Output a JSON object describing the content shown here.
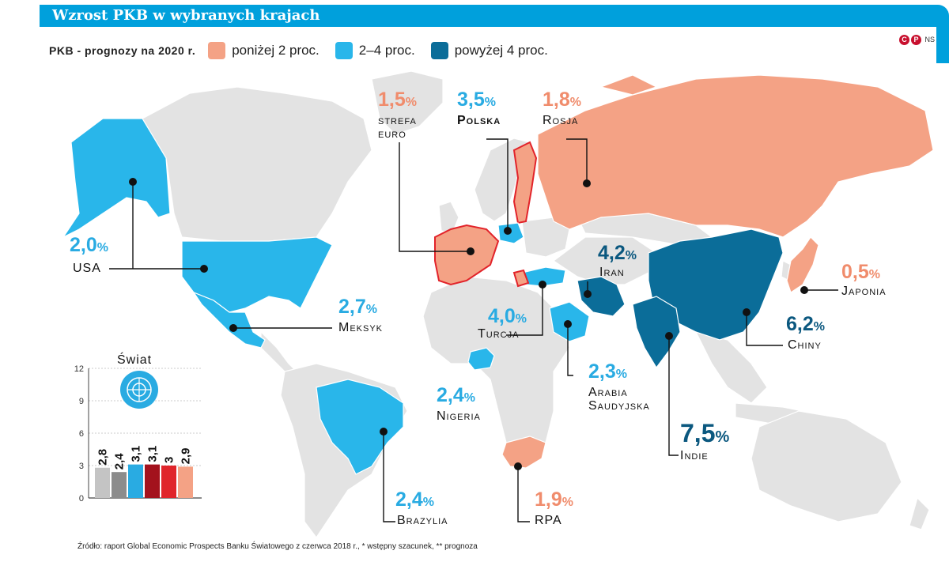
{
  "title": "Wzrost PKB w wybranych krajach",
  "legend": {
    "label": "PKB - prognozy na 2020 r.",
    "items": [
      {
        "label": "poniżej 2 proc.",
        "color": "#f4a285"
      },
      {
        "label": "2–4 proc.",
        "color": "#29b6ea"
      },
      {
        "label": "powyżej 4 proc.",
        "color": "#0b6d99"
      }
    ]
  },
  "copyright": {
    "symbols": [
      "C",
      "P"
    ],
    "author": "NS"
  },
  "countries": [
    {
      "key": "usa",
      "name": "USA",
      "value": "2,0",
      "category": "mid"
    },
    {
      "key": "meksyk",
      "name": "Meksyk",
      "value": "2,7",
      "category": "mid"
    },
    {
      "key": "strefa_euro",
      "name": "strefa euro",
      "value": "1,5",
      "category": "low"
    },
    {
      "key": "polska",
      "name": "Polska",
      "value": "3,5",
      "category": "mid"
    },
    {
      "key": "rosja",
      "name": "Rosja",
      "value": "1,8",
      "category": "low"
    },
    {
      "key": "iran",
      "name": "Iran",
      "value": "4,2",
      "category": "high"
    },
    {
      "key": "japonia",
      "name": "Japonia",
      "value": "0,5",
      "category": "low"
    },
    {
      "key": "turcja",
      "name": "Turcja",
      "value": "4,0",
      "category": "high"
    },
    {
      "key": "chiny",
      "name": "Chiny",
      "value": "6,2",
      "category": "high"
    },
    {
      "key": "arabia",
      "name": "Arabia Saudyjska",
      "value": "2,3",
      "category": "mid"
    },
    {
      "key": "nigeria",
      "name": "Nigeria",
      "value": "2,4",
      "category": "mid"
    },
    {
      "key": "indie",
      "name": "Indie",
      "value": "7,5",
      "category": "high"
    },
    {
      "key": "brazylia",
      "name": "Brazylia",
      "value": "2,4",
      "category": "mid"
    },
    {
      "key": "rpa",
      "name": "RPA",
      "value": "1,9",
      "category": "low"
    }
  ],
  "percent_sign": "%",
  "chart_data": {
    "type": "bar",
    "title": "Świat",
    "yticks": [
      0,
      3,
      6,
      9,
      12
    ],
    "ylim": [
      0,
      12
    ],
    "value_labels": [
      "2,8",
      "2,4",
      "3,1",
      "3,1",
      "3",
      "2,9"
    ],
    "values": [
      2.8,
      2.4,
      3.1,
      3.1,
      3.0,
      2.9
    ],
    "colors": [
      "#c4c4c4",
      "#8c8c8c",
      "#29abe2",
      "#a3121d",
      "#e0252b",
      "#f4a285"
    ]
  },
  "source": "Źródło: raport Global Economic Prospects Banku Światowego z czerwca 2018 r., * wstępny szacunek, ** prognoza"
}
